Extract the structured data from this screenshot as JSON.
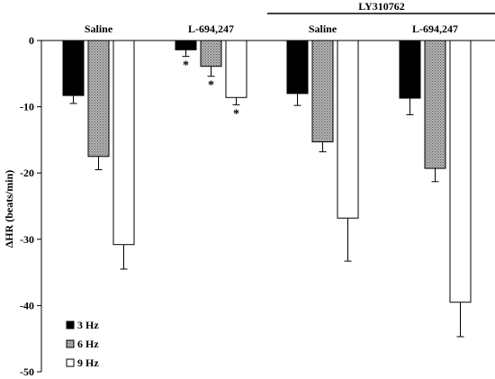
{
  "chart_data": {
    "type": "bar",
    "title": "",
    "xlabel": "",
    "ylabel": "ΔHR (beats/min)",
    "ylim": [
      -50,
      0
    ],
    "yticks": [
      0,
      -10,
      -20,
      -30,
      -40,
      -50
    ],
    "grid": false,
    "legend_position": "bottom-left",
    "bracket_label": "LY310762",
    "categories": [
      "Saline",
      "L-694,247",
      "Saline",
      "L-694,247"
    ],
    "series": [
      {
        "name": "3 Hz",
        "color": "#000000",
        "pattern": "solid",
        "values": [
          -8.3,
          -1.4,
          -8.0,
          -8.7
        ],
        "errors": [
          1.2,
          1.0,
          1.8,
          2.5
        ],
        "significant": [
          false,
          true,
          false,
          false
        ]
      },
      {
        "name": "6 Hz",
        "color": "#9a9a9a",
        "pattern": "stipple",
        "values": [
          -17.5,
          -3.9,
          -15.3,
          -19.3
        ],
        "errors": [
          2.0,
          1.5,
          1.5,
          2.0
        ],
        "significant": [
          false,
          true,
          false,
          false
        ]
      },
      {
        "name": "9 Hz",
        "color": "#ffffff",
        "pattern": "open",
        "values": [
          -30.8,
          -8.6,
          -26.8,
          -39.5
        ],
        "errors": [
          3.7,
          1.1,
          6.5,
          5.2
        ],
        "significant": [
          false,
          true,
          false,
          false
        ]
      }
    ],
    "significance_marker": "*"
  }
}
